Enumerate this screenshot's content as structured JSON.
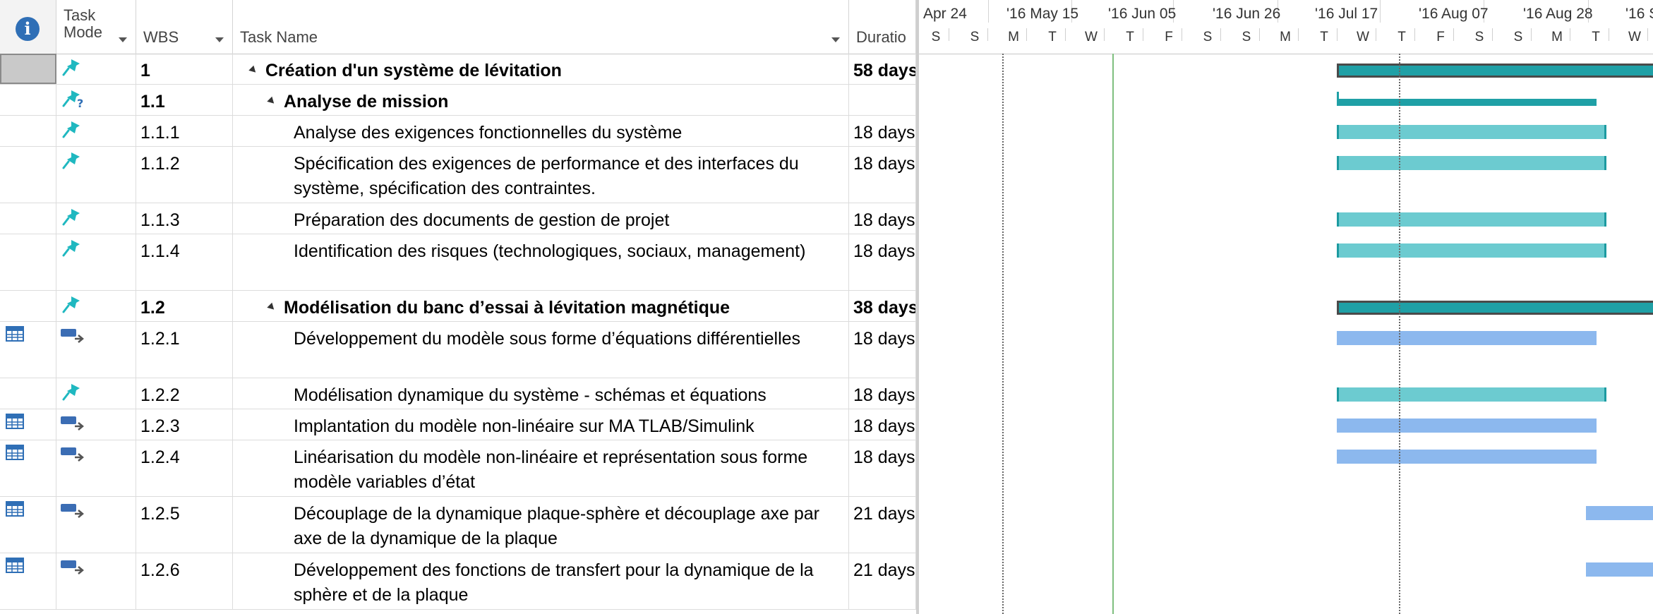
{
  "columns": {
    "task_mode_line1": "Task",
    "task_mode_line2": "Mode",
    "wbs": "WBS",
    "task_name": "Task Name",
    "duration": "Duratio"
  },
  "colors": {
    "manual_bar": "#6ccbd0",
    "auto_bar": "#8cb8ee",
    "summary_bar": "#1fa0a6",
    "info_icon": "#2f6fb6"
  },
  "timeline": {
    "tier_top": [
      "Apr 24",
      "'16 May 15",
      "'16 Jun 05",
      "'16 Jun 26",
      "'16 Jul 17",
      "'16 Aug 07",
      "'16 Aug 28",
      "'16 S"
    ],
    "tier_bottom": [
      "S",
      "S",
      "M",
      "T",
      "W",
      "T",
      "F",
      "S",
      "S",
      "M",
      "T",
      "W",
      "T",
      "F",
      "S",
      "S",
      "M",
      "T",
      "W"
    ]
  },
  "tasks": [
    {
      "wbs": "1",
      "name": "Création d'un système de lévitation",
      "duration": "58 days",
      "mode": "manual-icon",
      "indicator": "",
      "bold": true,
      "summary": true,
      "level": 0,
      "start_week": 3.0,
      "weeks": 8.3
    },
    {
      "wbs": "1.1",
      "name": "Analyse de mission",
      "duration": "",
      "mode": "manual-question-icon",
      "indicator": "",
      "bold": true,
      "summary": true,
      "level": 1,
      "start_week": 3.0,
      "weeks": 2.5
    },
    {
      "wbs": "1.1.1",
      "name": "Analyse des exigences fonctionnelles du système",
      "duration": "18 days",
      "mode": "manual-icon",
      "indicator": "",
      "bold": false,
      "summary": false,
      "level": 2,
      "start_week": 3.0,
      "weeks": 2.6
    },
    {
      "wbs": "1.1.2",
      "name": "Spécification des exigences de performance et des interfaces du système, spécification des contraintes.",
      "duration": "18 days",
      "mode": "manual-icon",
      "indicator": "",
      "bold": false,
      "summary": false,
      "level": 2,
      "start_week": 3.0,
      "weeks": 2.6
    },
    {
      "wbs": "1.1.3",
      "name": "Préparation des documents de gestion de projet",
      "duration": "18 days",
      "mode": "manual-icon",
      "indicator": "",
      "bold": false,
      "summary": false,
      "level": 2,
      "start_week": 3.0,
      "weeks": 2.6
    },
    {
      "wbs": "1.1.4",
      "name": "Identification des risques (technologiques, sociaux, management)",
      "duration": "18 days",
      "mode": "manual-icon",
      "indicator": "",
      "bold": false,
      "summary": false,
      "level": 2,
      "start_week": 3.0,
      "weeks": 2.6
    },
    {
      "wbs": "1.2",
      "name": "Modélisation du banc d’essai à lévitation magnétique",
      "duration": "38 days",
      "mode": "manual-icon",
      "indicator": "",
      "bold": true,
      "summary": true,
      "level": 1,
      "start_week": 3.0,
      "weeks": 5.4
    },
    {
      "wbs": "1.2.1",
      "name": "Développement du modèle sous forme d’équations différentielles",
      "duration": "18 days",
      "mode": "auto-icon",
      "indicator": "calendar-icon",
      "bold": false,
      "summary": false,
      "level": 2,
      "start_week": 3.0,
      "weeks": 2.5
    },
    {
      "wbs": "1.2.2",
      "name": "Modélisation dynamique du système - schémas et équations",
      "duration": "18 days",
      "mode": "manual-icon",
      "indicator": "",
      "bold": false,
      "summary": false,
      "level": 2,
      "start_week": 3.0,
      "weeks": 2.6
    },
    {
      "wbs": "1.2.3",
      "name": "Implantation du modèle non-linéaire sur MA TLAB/Simulink",
      "duration": "18 days",
      "mode": "auto-icon",
      "indicator": "calendar-icon",
      "bold": false,
      "summary": false,
      "level": 2,
      "start_week": 3.0,
      "weeks": 2.5
    },
    {
      "wbs": "1.2.4",
      "name": "Linéarisation du modèle non-linéaire et représentation sous forme modèle variables d’état",
      "duration": "18 days",
      "mode": "auto-icon",
      "indicator": "calendar-icon",
      "bold": false,
      "summary": false,
      "level": 2,
      "start_week": 3.0,
      "weeks": 2.5
    },
    {
      "wbs": "1.2.5",
      "name": "Découplage de la dynamique plaque-sphère et découplage axe par axe de la dynamique de la plaque",
      "duration": "21 days",
      "mode": "auto-icon",
      "indicator": "calendar-icon",
      "bold": false,
      "summary": false,
      "level": 2,
      "start_week": 5.4,
      "weeks": 3.0
    },
    {
      "wbs": "1.2.6",
      "name": "Développement des fonctions de transfert pour la dynamique de la sphère et de la plaque",
      "duration": "21 days",
      "mode": "auto-icon",
      "indicator": "calendar-icon",
      "bold": false,
      "summary": false,
      "level": 2,
      "start_week": 5.4,
      "weeks": 3.0
    }
  ]
}
